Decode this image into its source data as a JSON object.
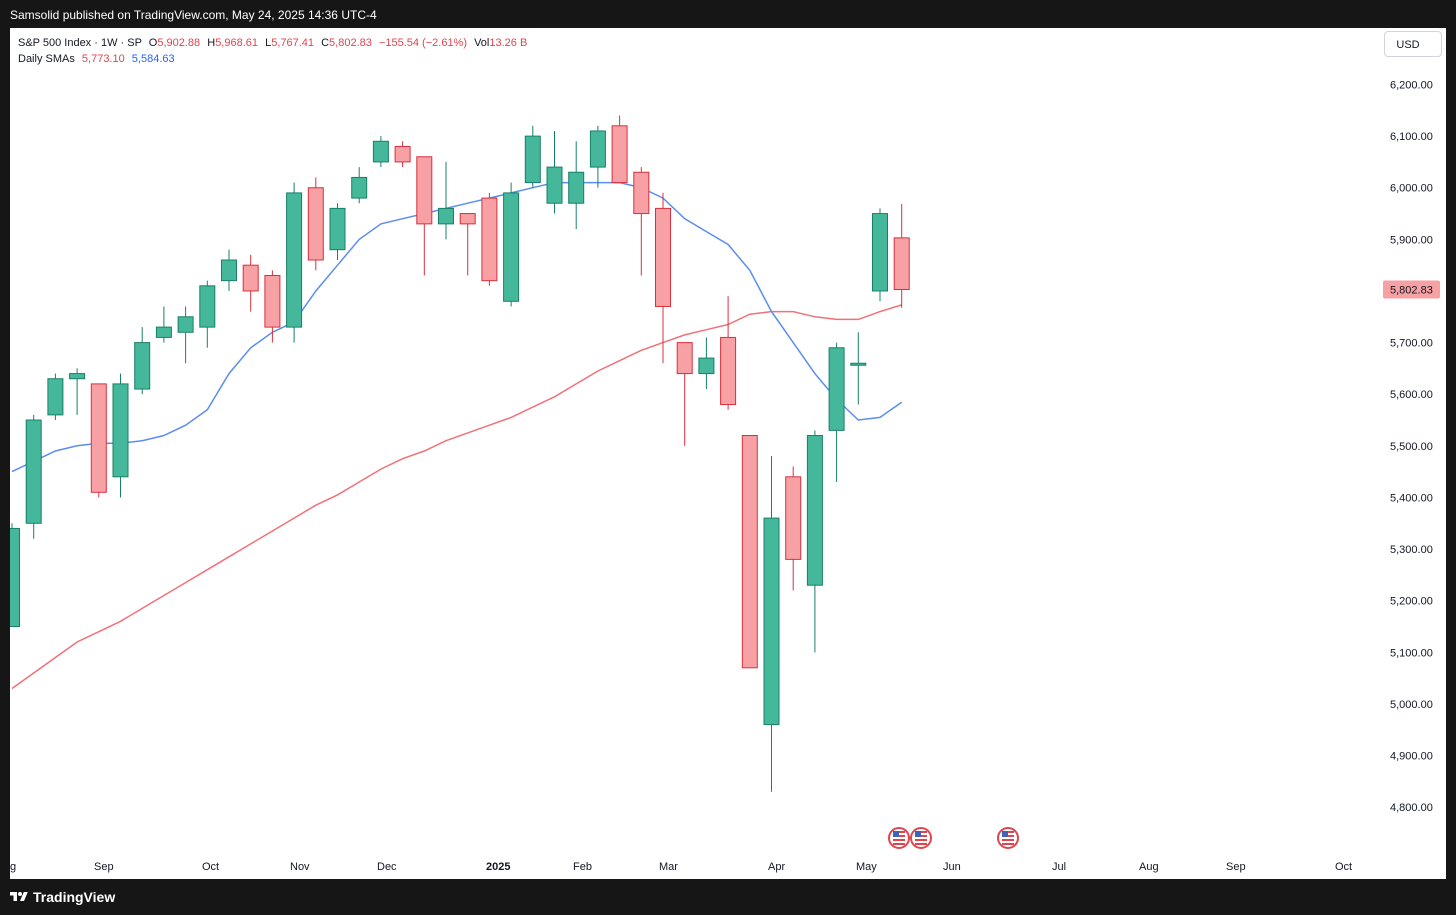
{
  "header": {
    "published": "Samsolid published on TradingView.com, May 24, 2025 14:36 UTC-4"
  },
  "legend": {
    "symbol": "S&P 500 Index · 1W · SP",
    "open_label": "O",
    "open": "5,902.88",
    "high_label": "H",
    "high": "5,968.61",
    "low_label": "L",
    "low": "5,767.41",
    "close_label": "C",
    "close": "5,802.83",
    "change": "−155.54 (−2.61%)",
    "vol_label": "Vol",
    "vol": "13.26 B",
    "sma_label": "Daily SMAs",
    "sma_red": "5,773.10",
    "sma_blue": "5,584.63"
  },
  "currency_button": "USD",
  "footer": {
    "brand": "TradingView"
  },
  "colors": {
    "up": "#45b89c",
    "down": "#f7a1a4",
    "up_border": "#188066",
    "down_border": "#d8303e",
    "sma_red": "#f07178",
    "sma_blue": "#5b8def"
  },
  "icons": [
    "tradingview-logo-icon",
    "us-flag-event-icon"
  ],
  "chart_data": {
    "type": "candlestick",
    "title": "S&P 500 Index · 1W · SP",
    "xlabel": "",
    "ylabel": "",
    "ylim": [
      4760,
      6260
    ],
    "y_ticks": [
      "6,200.00",
      "6,100.00",
      "6,000.00",
      "5,900.00",
      "5,800.00",
      "5,700.00",
      "5,600.00",
      "5,500.00",
      "5,400.00",
      "5,300.00",
      "5,200.00",
      "5,100.00",
      "5,000.00",
      "4,900.00",
      "4,800.00"
    ],
    "x_ticks": [
      "g",
      "Sep",
      "Oct",
      "Nov",
      "Dec",
      "2025",
      "Feb",
      "Mar",
      "Apr",
      "May",
      "Jun",
      "Jul",
      "Aug",
      "Sep",
      "Oct"
    ],
    "last_price_label": "5,802.83",
    "grid": false,
    "candles": [
      {
        "o": 5150,
        "h": 5350,
        "l": 5150,
        "c": 5340
      },
      {
        "o": 5350,
        "h": 5560,
        "l": 5320,
        "c": 5550
      },
      {
        "o": 5560,
        "h": 5640,
        "l": 5550,
        "c": 5630
      },
      {
        "o": 5630,
        "h": 5650,
        "l": 5560,
        "c": 5640
      },
      {
        "o": 5620,
        "h": 5620,
        "l": 5400,
        "c": 5410
      },
      {
        "o": 5440,
        "h": 5640,
        "l": 5400,
        "c": 5620
      },
      {
        "o": 5610,
        "h": 5730,
        "l": 5600,
        "c": 5700
      },
      {
        "o": 5710,
        "h": 5770,
        "l": 5700,
        "c": 5730
      },
      {
        "o": 5720,
        "h": 5770,
        "l": 5660,
        "c": 5750
      },
      {
        "o": 5730,
        "h": 5820,
        "l": 5690,
        "c": 5810
      },
      {
        "o": 5820,
        "h": 5880,
        "l": 5800,
        "c": 5860
      },
      {
        "o": 5850,
        "h": 5870,
        "l": 5760,
        "c": 5800
      },
      {
        "o": 5830,
        "h": 5840,
        "l": 5700,
        "c": 5730
      },
      {
        "o": 5730,
        "h": 6010,
        "l": 5700,
        "c": 5990
      },
      {
        "o": 6000,
        "h": 6020,
        "l": 5840,
        "c": 5860
      },
      {
        "o": 5880,
        "h": 5970,
        "l": 5860,
        "c": 5960
      },
      {
        "o": 5980,
        "h": 6040,
        "l": 5970,
        "c": 6020
      },
      {
        "o": 6050,
        "h": 6100,
        "l": 6040,
        "c": 6090
      },
      {
        "o": 6080,
        "h": 6090,
        "l": 6040,
        "c": 6050
      },
      {
        "o": 6060,
        "h": 6060,
        "l": 5830,
        "c": 5930
      },
      {
        "o": 5930,
        "h": 6050,
        "l": 5900,
        "c": 5960
      },
      {
        "o": 5950,
        "h": 5950,
        "l": 5830,
        "c": 5930
      },
      {
        "o": 5980,
        "h": 5990,
        "l": 5810,
        "c": 5820
      },
      {
        "o": 5780,
        "h": 6010,
        "l": 5770,
        "c": 5990
      },
      {
        "o": 6010,
        "h": 6120,
        "l": 6000,
        "c": 6100
      },
      {
        "o": 5970,
        "h": 6110,
        "l": 5950,
        "c": 6040
      },
      {
        "o": 5970,
        "h": 6090,
        "l": 5920,
        "c": 6030
      },
      {
        "o": 6040,
        "h": 6120,
        "l": 6000,
        "c": 6110
      },
      {
        "o": 6120,
        "h": 6140,
        "l": 6010,
        "c": 6010
      },
      {
        "o": 6030,
        "h": 6040,
        "l": 5830,
        "c": 5950
      },
      {
        "o": 5960,
        "h": 5990,
        "l": 5660,
        "c": 5770
      },
      {
        "o": 5700,
        "h": 5700,
        "l": 5500,
        "c": 5640
      },
      {
        "o": 5640,
        "h": 5710,
        "l": 5610,
        "c": 5670
      },
      {
        "o": 5710,
        "h": 5790,
        "l": 5570,
        "c": 5580
      },
      {
        "o": 5520,
        "h": 5520,
        "l": 5070,
        "c": 5070
      },
      {
        "o": 4960,
        "h": 5480,
        "l": 4830,
        "c": 5360
      },
      {
        "o": 5440,
        "h": 5460,
        "l": 5220,
        "c": 5280
      },
      {
        "o": 5230,
        "h": 5530,
        "l": 5100,
        "c": 5520
      },
      {
        "o": 5530,
        "h": 5700,
        "l": 5430,
        "c": 5690
      },
      {
        "o": 5660,
        "h": 5720,
        "l": 5580,
        "c": 5660
      },
      {
        "o": 5800,
        "h": 5960,
        "l": 5780,
        "c": 5950
      },
      {
        "o": 5902.88,
        "h": 5968.61,
        "l": 5767.41,
        "c": 5802.83
      }
    ],
    "series": [
      {
        "name": "Daily SMAs",
        "color": "#f07178",
        "values": [
          5030,
          5060,
          5090,
          5120,
          5140,
          5160,
          5185,
          5210,
          5235,
          5260,
          5285,
          5310,
          5335,
          5360,
          5385,
          5405,
          5430,
          5455,
          5475,
          5490,
          5510,
          5525,
          5540,
          5555,
          5575,
          5595,
          5620,
          5645,
          5665,
          5685,
          5700,
          5715,
          5725,
          5735,
          5755,
          5760,
          5760,
          5750,
          5745,
          5745,
          5760,
          5773.1
        ]
      },
      {
        "name": "Daily SMAs",
        "color": "#5b8def",
        "values": [
          5450,
          5470,
          5490,
          5500,
          5505,
          5505,
          5510,
          5520,
          5540,
          5570,
          5640,
          5690,
          5720,
          5740,
          5800,
          5850,
          5900,
          5930,
          5940,
          5950,
          5960,
          5970,
          5980,
          5990,
          6000,
          6010,
          6010,
          6010,
          6010,
          6000,
          5980,
          5940,
          5915,
          5890,
          5840,
          5760,
          5700,
          5640,
          5590,
          5550,
          5555,
          5584.63
        ]
      }
    ]
  }
}
